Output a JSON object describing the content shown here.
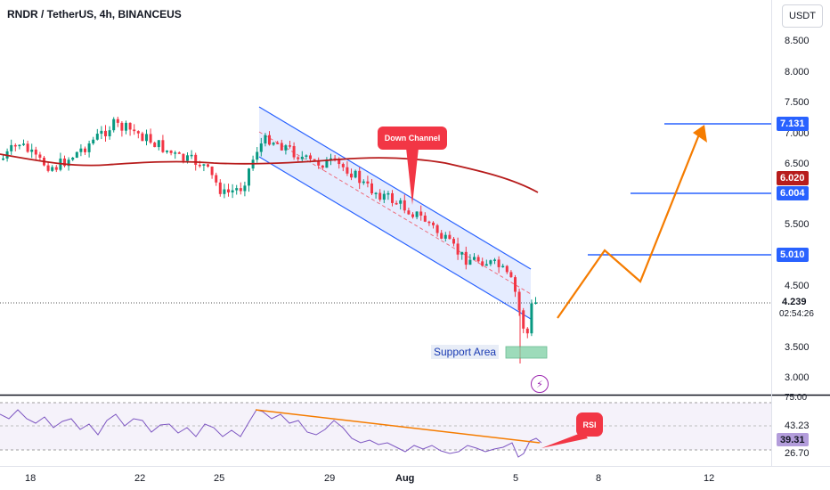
{
  "header": {
    "symbol_title": "RNDR / TetherUS, 4h, BINANCEUS",
    "currency_button": "USDT"
  },
  "colors": {
    "channel": "#2962ff",
    "up_candle": "#089981",
    "down_candle": "#f23645",
    "ma_line": "#b71c1c",
    "projection": "#f57c00",
    "rsi_line": "#7e57c2",
    "support_box": "#7dcfa3"
  },
  "price_axis": {
    "labels": [
      "8.500",
      "8.000",
      "7.500",
      "7.000",
      "6.500",
      "5.500",
      "4.500",
      "3.500",
      "3.000"
    ]
  },
  "price_tags": {
    "target_top": "7.131",
    "ma_value": "6.020",
    "target_mid": "6.004",
    "target_low": "5.010",
    "last_price": "4.239",
    "countdown": "02:54:26"
  },
  "rsi_axis": {
    "upper": "75.00",
    "mid_level": "43.23",
    "current": "39.31",
    "lower": "26.70"
  },
  "time_axis": {
    "labels": [
      "18",
      "22",
      "25",
      "29",
      "Aug",
      "5",
      "8",
      "12"
    ]
  },
  "annotations": {
    "down_channel": "Down Channel",
    "rsi_callout": "RSI",
    "support_area": "Support Area"
  },
  "icons": {
    "indicator_badge": "lightning-icon"
  }
}
